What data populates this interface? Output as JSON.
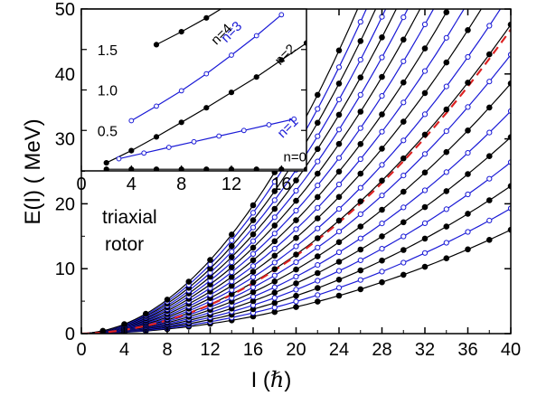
{
  "chart_data": [
    {
      "type": "line",
      "ylabel": "E(I) ( MeV)",
      "xlabel_main": "I (",
      "xlabel_symbol": "ℏ",
      "xlabel_close": ")",
      "xlim": [
        0,
        40
      ],
      "ylim": [
        0,
        50
      ],
      "xticks": [
        0,
        4,
        8,
        12,
        16,
        20,
        24,
        28,
        32,
        36,
        40
      ],
      "yticks": [
        0,
        10,
        20,
        30,
        40,
        50
      ],
      "annotation": [
        "triaxial",
        "rotor"
      ],
      "yrast_reference": {
        "color": "#dd2222",
        "style": "dashed",
        "coef": 0.02857
      },
      "band_coefficients": [
        0.00975,
        0.01176,
        0.01386,
        0.0161,
        0.01845,
        0.0209,
        0.0235,
        0.0262,
        0.02903,
        0.032,
        0.0351,
        0.0383,
        0.0416,
        0.0451,
        0.0487,
        0.0524,
        0.0562,
        0.0601,
        0.0642,
        0.0684,
        0.0727
      ],
      "series_colors": [
        "#000000",
        "#1a1ad6"
      ],
      "grid": false
    },
    {
      "type": "line",
      "role": "inset",
      "xlim": [
        0,
        18
      ],
      "ylim": [
        0,
        2
      ],
      "xticks": [
        0,
        4,
        8,
        12,
        16
      ],
      "yticks": [
        0.5,
        1.0,
        1.5
      ],
      "ytick_labels": [
        "0.5",
        "1.0",
        "1.5"
      ],
      "series": [
        {
          "name": "n=0",
          "x": [
            2,
            4,
            6,
            8,
            10,
            12,
            14,
            16,
            18
          ],
          "y": [
            0.02,
            0.02,
            0.02,
            0.02,
            0.02,
            0.02,
            0.02,
            0.02,
            0.02
          ]
        },
        {
          "name": "n=1",
          "x": [
            3,
            5,
            7,
            9,
            11,
            13,
            15,
            17
          ],
          "y": [
            0.15,
            0.22,
            0.29,
            0.36,
            0.43,
            0.5,
            0.57,
            0.64
          ]
        },
        {
          "name": "n=2",
          "x": [
            2,
            4,
            6,
            8,
            10,
            12,
            14,
            16,
            18
          ],
          "y": [
            0.1,
            0.25,
            0.42,
            0.6,
            0.78,
            0.97,
            1.16,
            1.37,
            1.58
          ]
        },
        {
          "name": "n=3",
          "x": [
            4,
            6,
            8,
            10,
            12,
            14,
            16
          ],
          "y": [
            0.62,
            0.8,
            0.99,
            1.2,
            1.43,
            1.67,
            1.93
          ]
        },
        {
          "name": "n=4",
          "x": [
            6,
            8,
            10,
            12
          ],
          "y": [
            1.56,
            1.72,
            1.89,
            2.08
          ]
        }
      ],
      "label_colors": {
        "n=0": "#000000",
        "n=1": "#1a1ad6",
        "n=2": "#000000",
        "n=3": "#1a1ad6",
        "n=4": "#000000"
      }
    }
  ]
}
